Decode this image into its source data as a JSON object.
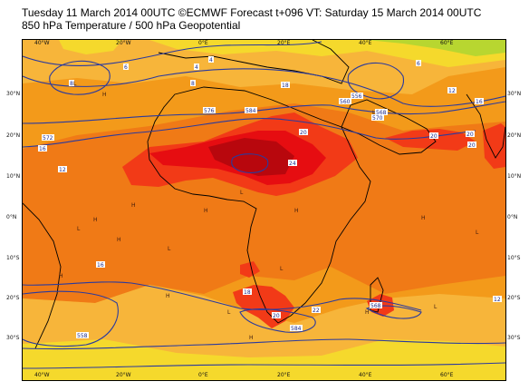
{
  "header": {
    "line1": "Tuesday 11 March 2014 00UTC ©ECMWF Forecast t+096 VT: Saturday 15 March 2014 00UTC",
    "line2": "850 hPa Temperature / 500 hPa Geopotential"
  },
  "map": {
    "lon_labels": [
      "40°W",
      "20°W",
      "0°E",
      "20°E",
      "40°E",
      "60°E"
    ],
    "lat_labels": [
      "30°N",
      "20°N",
      "10°N",
      "0°N",
      "10°S",
      "20°S",
      "30°S"
    ],
    "colors": {
      "ocean_base": "#f39a1a",
      "light_orange": "#f7b53a",
      "yellow": "#f5d92c",
      "lime": "#b8d630",
      "warm": "#f07a16",
      "red": "#f23a17",
      "hot": "#e60d11",
      "hottest": "#b8070d",
      "geopotential_line": "#2a3a9e",
      "coastline": "#000000"
    },
    "contour_labels": [
      "6",
      "6",
      "4",
      "4",
      "8",
      "8",
      "12",
      "12",
      "12",
      "16",
      "16",
      "16",
      "18",
      "18",
      "20",
      "20",
      "20",
      "20",
      "20",
      "22",
      "24",
      "556",
      "558",
      "560",
      "568",
      "568",
      "570",
      "572",
      "576",
      "584",
      "584"
    ],
    "high_low_markers": [
      "H",
      "H",
      "H",
      "H",
      "H",
      "H",
      "H",
      "H",
      "H",
      "H",
      "H",
      "L",
      "L",
      "L",
      "L",
      "L",
      "L",
      "L",
      "L",
      "L"
    ]
  }
}
